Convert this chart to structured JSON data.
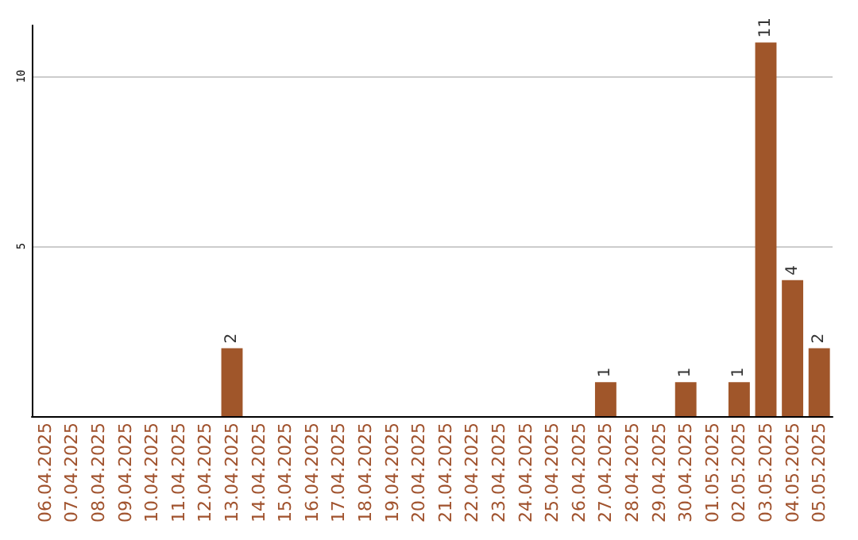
{
  "chart_data": {
    "type": "bar",
    "categories": [
      "06.04.2025",
      "07.04.2025",
      "08.04.2025",
      "09.04.2025",
      "10.04.2025",
      "11.04.2025",
      "12.04.2025",
      "13.04.2025",
      "14.04.2025",
      "15.04.2025",
      "16.04.2025",
      "17.04.2025",
      "18.04.2025",
      "19.04.2025",
      "20.04.2025",
      "21.04.2025",
      "22.04.2025",
      "23.04.2025",
      "24.04.2025",
      "25.04.2025",
      "26.04.2025",
      "27.04.2025",
      "28.04.2025",
      "29.04.2025",
      "30.04.2025",
      "01.05.2025",
      "02.05.2025",
      "03.05.2025",
      "04.05.2025",
      "05.05.2025"
    ],
    "values": [
      0,
      0,
      0,
      0,
      0,
      0,
      0,
      2,
      0,
      0,
      0,
      0,
      0,
      0,
      0,
      0,
      0,
      0,
      0,
      0,
      0,
      1,
      0,
      0,
      1,
      0,
      1,
      11,
      4,
      2
    ],
    "value_labels": [
      null,
      null,
      null,
      null,
      null,
      null,
      null,
      "2",
      null,
      null,
      null,
      null,
      null,
      null,
      null,
      null,
      null,
      null,
      null,
      null,
      null,
      "1",
      null,
      null,
      "1",
      null,
      "1",
      "11",
      "4",
      "2"
    ],
    "color": "#a0562a",
    "ylim": [
      0,
      11.5
    ],
    "yticks": [
      {
        "value": 0,
        "label": null
      },
      5,
      10
    ],
    "grid": "y"
  }
}
